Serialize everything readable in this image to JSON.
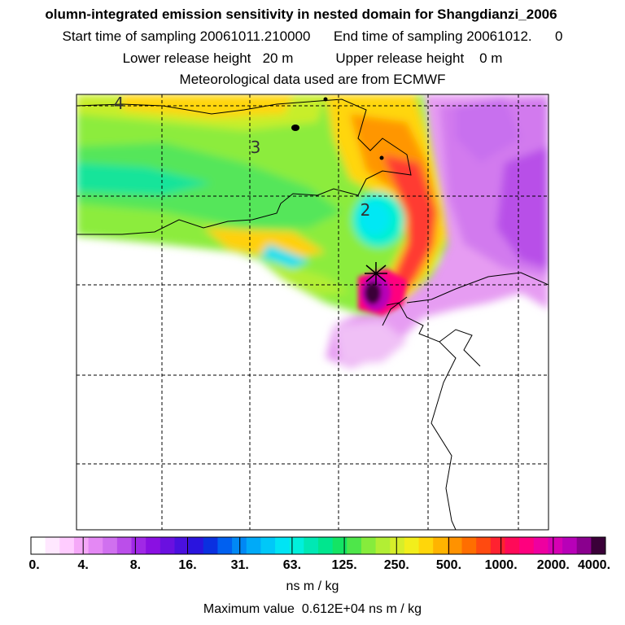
{
  "header": {
    "title": "olumn-integrated emission sensitivity in nested domain for Shangdianzi_2006",
    "sampling": {
      "start_label": "Start time of sampling",
      "start_value": "20061011.210000",
      "end_label": "End time of sampling",
      "end_value": "20061012.",
      "end_suffix": "0"
    },
    "release": {
      "lower_label": "Lower release height",
      "lower_value": "20 m",
      "upper_label": "Upper release height",
      "upper_value": "0 m"
    },
    "met_note": "Meteorological data used are from ECMWF"
  },
  "map": {
    "contour_labels": [
      "4",
      "3",
      "2"
    ],
    "receptor_marker": "receptor-cross"
  },
  "colorbar": {
    "tick_labels": [
      "0.",
      "4.",
      "8.",
      "16.",
      "31.",
      "63.",
      "125.",
      "250.",
      "500.",
      "1000.",
      "2000.",
      "4000."
    ],
    "units": "ns m / kg",
    "colors": [
      "#ffffff",
      "#ffe8ff",
      "#ffccff",
      "#f5a8f8",
      "#e488f4",
      "#d070ef",
      "#bb4eea",
      "#a028e6",
      "#8a10e2",
      "#6a10e0",
      "#4a10df",
      "#2a14de",
      "#0a30e0",
      "#0060f0",
      "#0088f5",
      "#00aaf8",
      "#00c8f8",
      "#00e4f4",
      "#00f0dc",
      "#00e8b4",
      "#00e68e",
      "#14e464",
      "#4ee64a",
      "#86ec3c",
      "#b2ee34",
      "#d6ee2a",
      "#f2ee1c",
      "#ffd60a",
      "#ffb400",
      "#ff9200",
      "#ff6e00",
      "#ff4a10",
      "#ff2230",
      "#ff0a58",
      "#ff007e",
      "#ee00a0",
      "#d600b4",
      "#b800b8",
      "#8a008e",
      "#3a0038"
    ]
  },
  "max_value": {
    "label": "Maximum value",
    "value": "0.612E+04",
    "units": "ns m / kg"
  }
}
